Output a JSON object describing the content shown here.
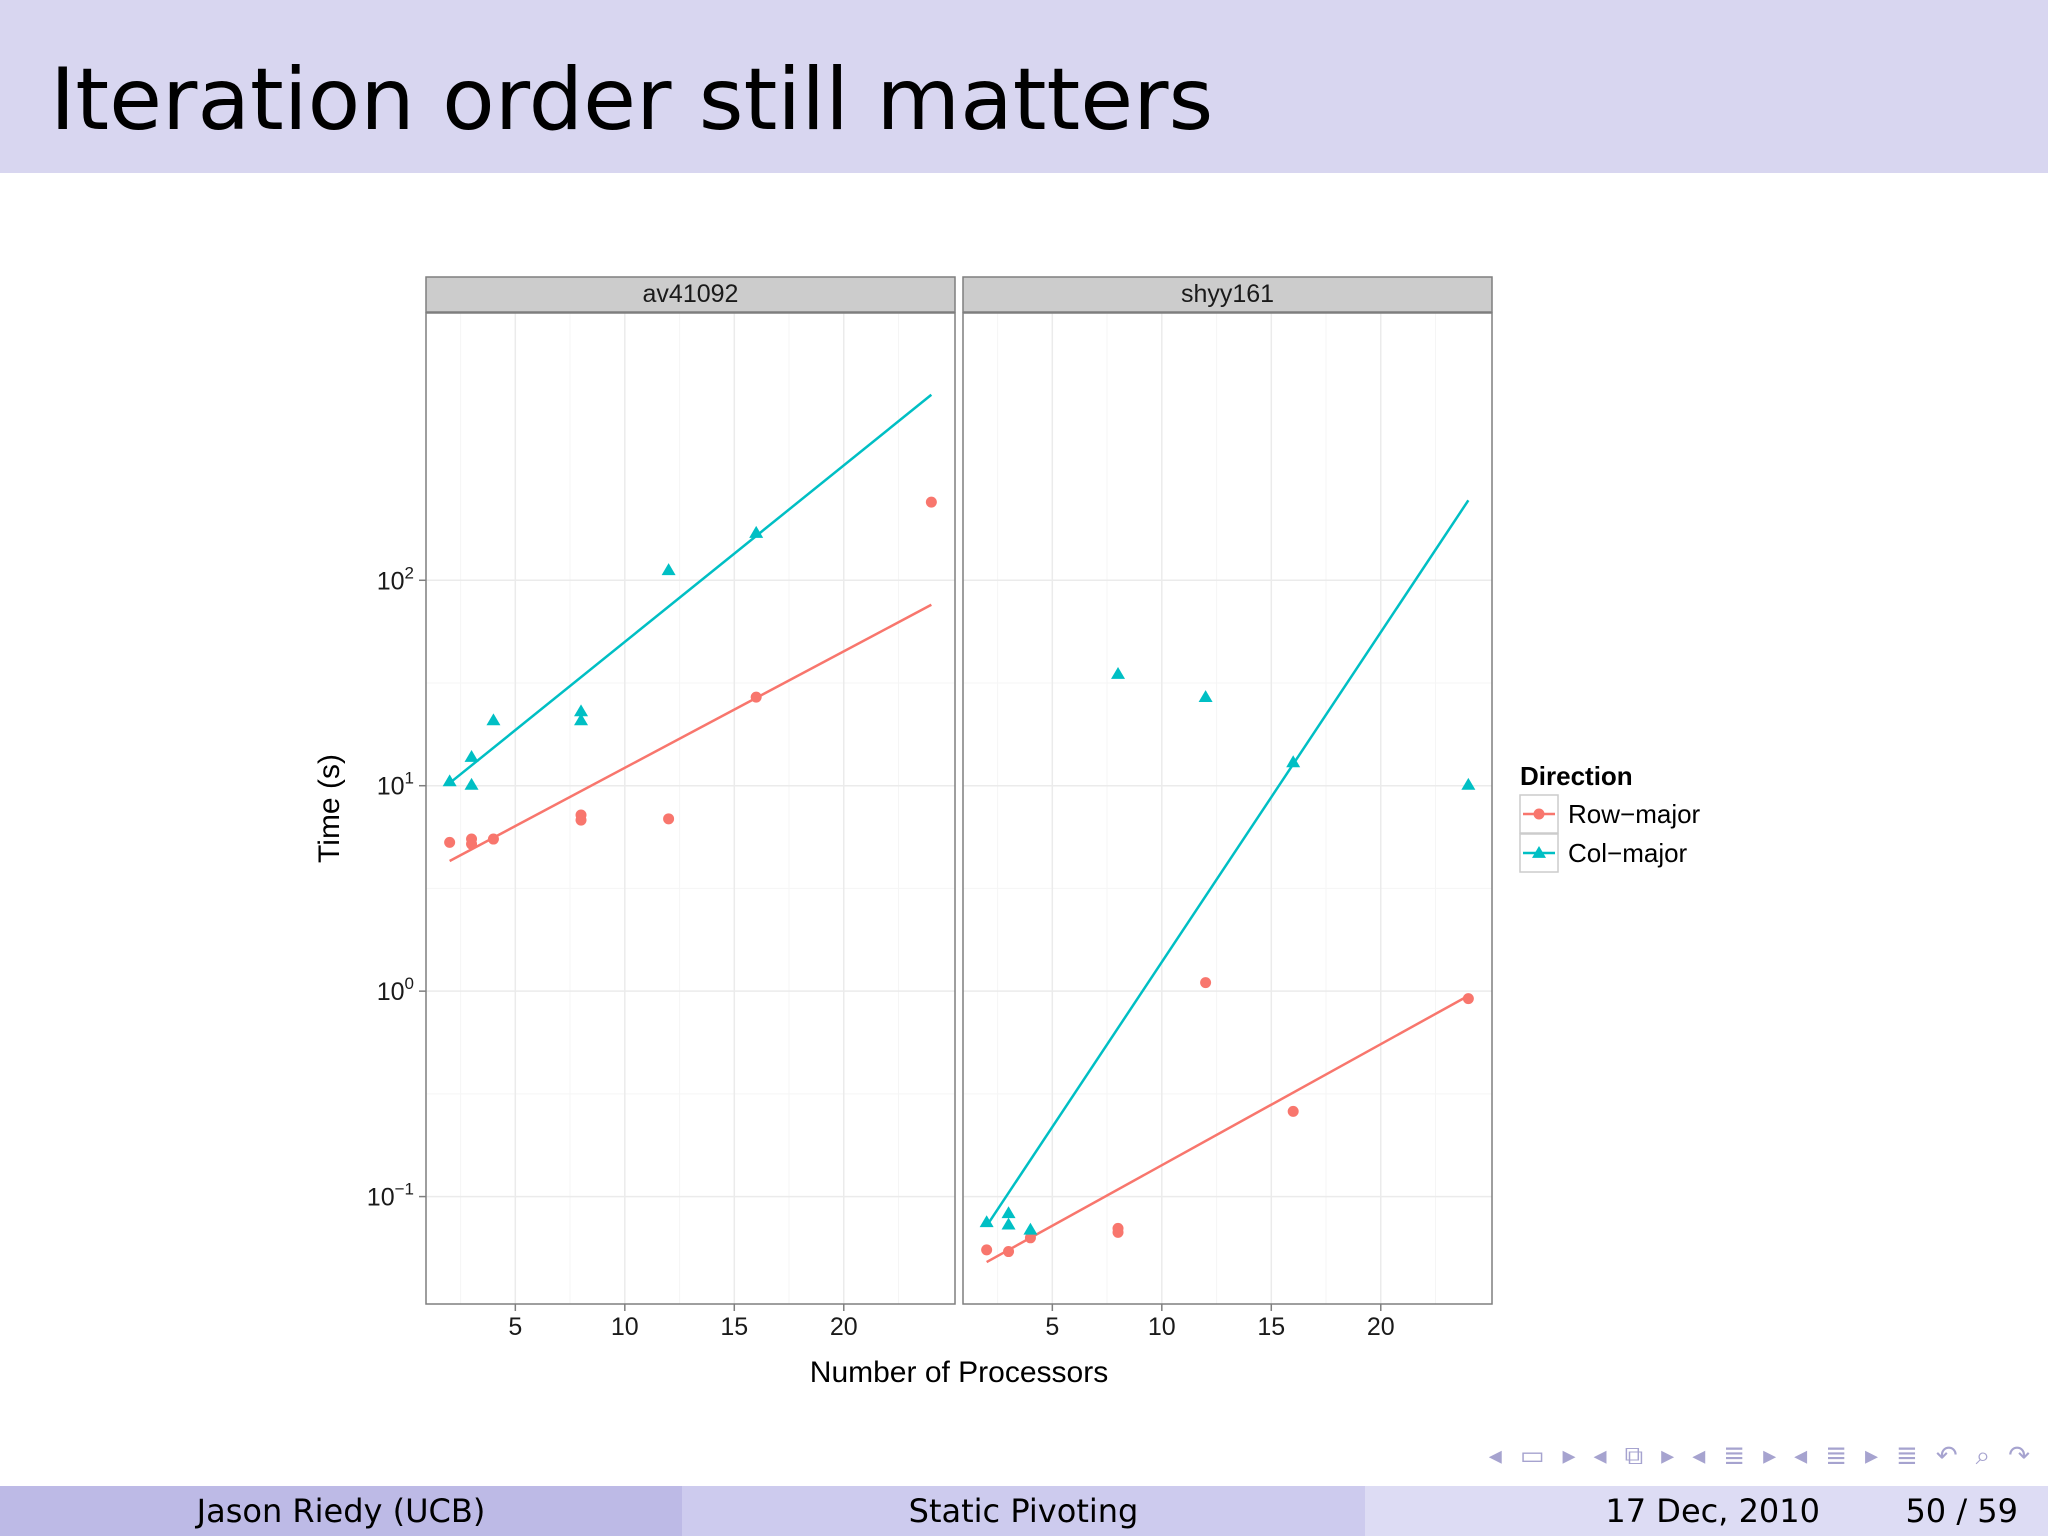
{
  "slide": {
    "title": "Iteration order still matters"
  },
  "footer": {
    "author": "Jason Riedy  (UCB)",
    "talk_title": "Static Pivoting",
    "date": "17 Dec, 2010",
    "page": "50 / 59"
  },
  "nav": {
    "icons": [
      "frame-prev-icon",
      "frame-icon",
      "frame-next-icon",
      "subsection-prev-icon",
      "subsection-icon",
      "subsection-next-icon",
      "section-prev-icon",
      "section-icon",
      "section-next-icon",
      "presentation-prev-icon",
      "presentation-icon",
      "presentation-next-icon",
      "appendix-icon",
      "search-back-icon",
      "search-icon",
      "search-forward-icon"
    ],
    "symbols": [
      "◂",
      "▭",
      "▸",
      "◂",
      "⧉",
      "▸",
      "◂",
      "≣",
      "▸",
      "◂",
      "≣",
      "▸",
      "≣",
      "↶",
      "⌕",
      "↷"
    ]
  },
  "colors": {
    "row_major": "#f8766d",
    "col_major": "#00bfc4",
    "strip_bg": "#cccccc",
    "grid": "#ebebeb",
    "title_bar": "#d8d6f0"
  },
  "chart_data": {
    "type": "scatter",
    "xlabel": "Number of Processors",
    "ylabel": "Time (s)",
    "y_scale": "log10",
    "ylim": [
      0.03,
      2000
    ],
    "y_ticks": [
      {
        "value": 0.1,
        "base": "10",
        "exp": "−1"
      },
      {
        "value": 1,
        "base": "10",
        "exp": "0"
      },
      {
        "value": 10,
        "base": "10",
        "exp": "1"
      },
      {
        "value": 100,
        "base": "10",
        "exp": "2"
      }
    ],
    "xlim": [
      0.92,
      25.08
    ],
    "x_ticks": [
      5,
      10,
      15,
      20
    ],
    "legend": {
      "title": "Direction",
      "placement": "right",
      "entries": [
        {
          "label": "Row−major",
          "shape": "circle",
          "color": "#f8766d"
        },
        {
          "label": "Col−major",
          "shape": "triangle",
          "color": "#00bfc4"
        }
      ]
    },
    "panels": [
      {
        "name": "av41092",
        "series": [
          {
            "name": "Row−major",
            "x": [
              2,
              3,
              3,
              4,
              8,
              8,
              12,
              16,
              24
            ],
            "y": [
              5.3,
              5.5,
              5.2,
              5.5,
              7.2,
              6.8,
              6.9,
              27,
              240
            ],
            "fit": [
              [
                2,
                4.3
              ],
              [
                24,
                76
              ]
            ]
          },
          {
            "name": "Col−major",
            "x": [
              2,
              3,
              3,
              4,
              8,
              8,
              12,
              16
            ],
            "y": [
              10.5,
              13.8,
              10.1,
              20.8,
              23,
              20.8,
              112,
              170
            ],
            "fit": [
              [
                2,
                10.3
              ],
              [
                24,
                800
              ]
            ]
          }
        ]
      },
      {
        "name": "shyy161",
        "series": [
          {
            "name": "Row−major",
            "x": [
              2,
              3,
              4,
              8,
              8,
              12,
              16,
              24
            ],
            "y": [
              0.055,
              0.054,
              0.063,
              0.07,
              0.067,
              1.1,
              0.26,
              0.92
            ],
            "fit": [
              [
                2,
                0.048
              ],
              [
                24,
                0.95
              ]
            ]
          },
          {
            "name": "Col−major",
            "x": [
              2,
              3,
              3,
              4,
              8,
              12,
              16,
              24
            ],
            "y": [
              0.075,
              0.083,
              0.073,
              0.069,
              35,
              27,
              13,
              10.1
            ],
            "fit": [
              [
                2,
                0.072
              ],
              [
                24,
                245
              ]
            ]
          }
        ]
      }
    ]
  }
}
